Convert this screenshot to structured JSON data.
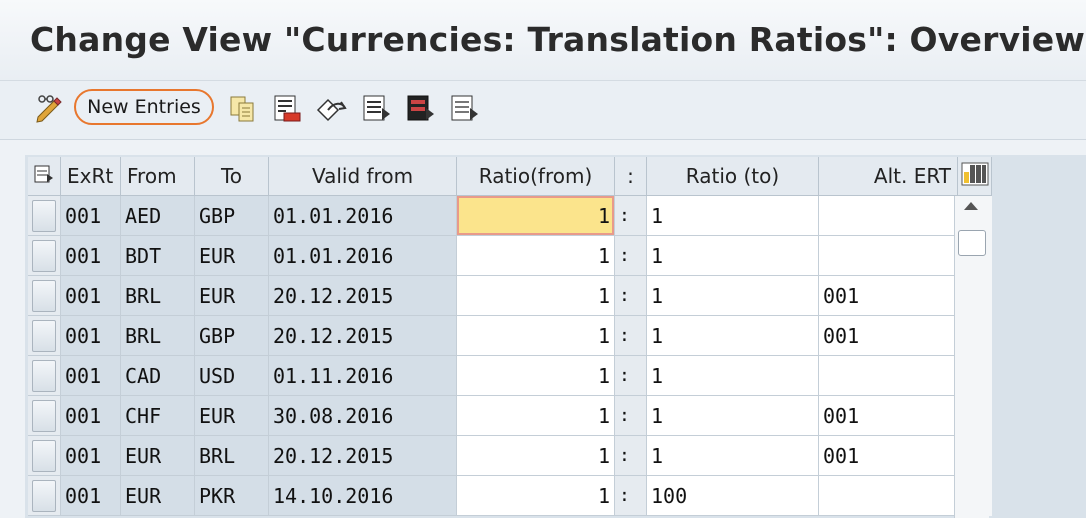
{
  "window": {
    "title": "Change View \"Currencies: Translation Ratios\": Overview"
  },
  "toolbar": {
    "new_entries_label": "New Entries",
    "icons": [
      "display-change-icon",
      "copy-icon",
      "delete-icon",
      "undo-icon",
      "select-all-icon",
      "select-block-icon",
      "deselect-all-icon"
    ]
  },
  "table": {
    "headers": {
      "exrt": "ExRt",
      "from": "From",
      "to": "To",
      "valid_from": "Valid from",
      "ratio_from": "Ratio(from)",
      "colon": ":",
      "ratio_to": "Ratio (to)",
      "alt_ert": "Alt. ERT"
    },
    "rows": [
      {
        "exrt": "001",
        "from": "AED",
        "to": "GBP",
        "valid_from": "01.01.2016",
        "ratio_from": "1",
        "colon": ":",
        "ratio_to": "1",
        "alt_ert": ""
      },
      {
        "exrt": "001",
        "from": "BDT",
        "to": "EUR",
        "valid_from": "01.01.2016",
        "ratio_from": "1",
        "colon": ":",
        "ratio_to": "1",
        "alt_ert": ""
      },
      {
        "exrt": "001",
        "from": "BRL",
        "to": "EUR",
        "valid_from": "20.12.2015",
        "ratio_from": "1",
        "colon": ":",
        "ratio_to": "1",
        "alt_ert": "001"
      },
      {
        "exrt": "001",
        "from": "BRL",
        "to": "GBP",
        "valid_from": "20.12.2015",
        "ratio_from": "1",
        "colon": ":",
        "ratio_to": "1",
        "alt_ert": "001"
      },
      {
        "exrt": "001",
        "from": "CAD",
        "to": "USD",
        "valid_from": "01.11.2016",
        "ratio_from": "1",
        "colon": ":",
        "ratio_to": "1",
        "alt_ert": ""
      },
      {
        "exrt": "001",
        "from": "CHF",
        "to": "EUR",
        "valid_from": "30.08.2016",
        "ratio_from": "1",
        "colon": ":",
        "ratio_to": "1",
        "alt_ert": "001"
      },
      {
        "exrt": "001",
        "from": "EUR",
        "to": "BRL",
        "valid_from": "20.12.2015",
        "ratio_from": "1",
        "colon": ":",
        "ratio_to": "1",
        "alt_ert": "001"
      },
      {
        "exrt": "001",
        "from": "EUR",
        "to": "PKR",
        "valid_from": "14.10.2016",
        "ratio_from": "1",
        "colon": ":",
        "ratio_to": "100",
        "alt_ert": ""
      }
    ]
  }
}
